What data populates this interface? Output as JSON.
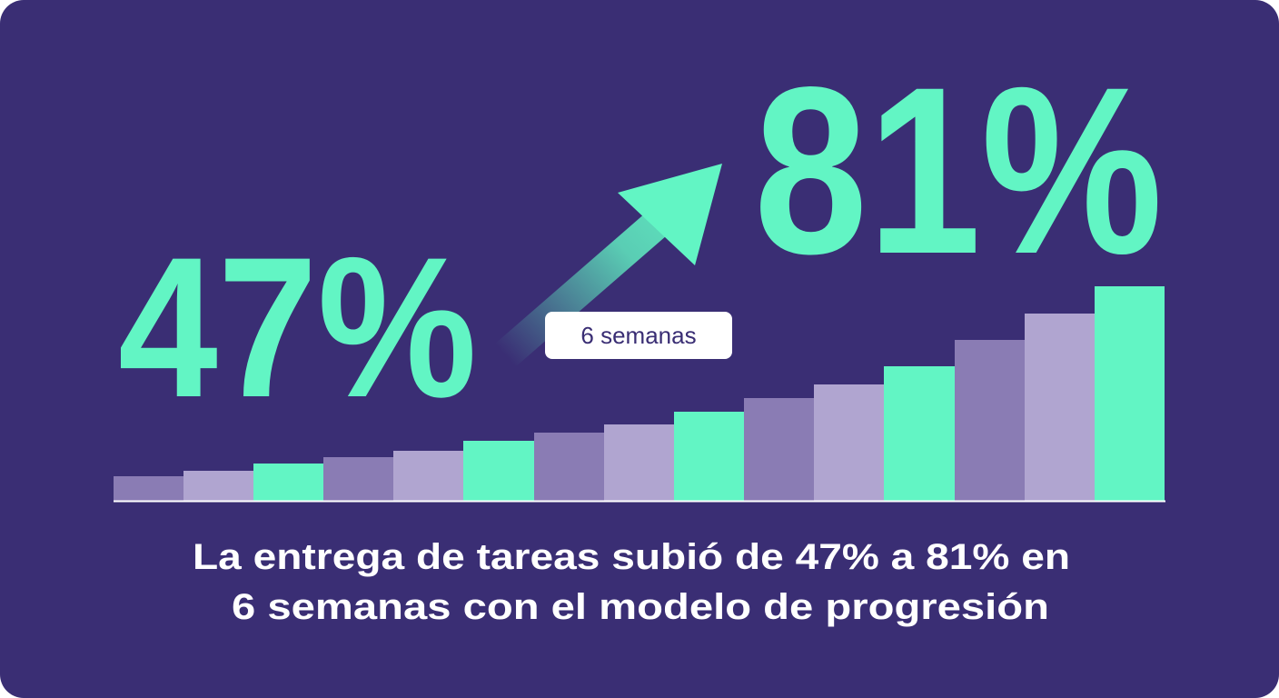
{
  "stat_start": "47%",
  "stat_end": "81%",
  "badge": "6 semanas",
  "caption": [
    "La entrega de tareas subió de 47% a 81% en",
    "6 semanas con el modelo de progresión"
  ]
}
